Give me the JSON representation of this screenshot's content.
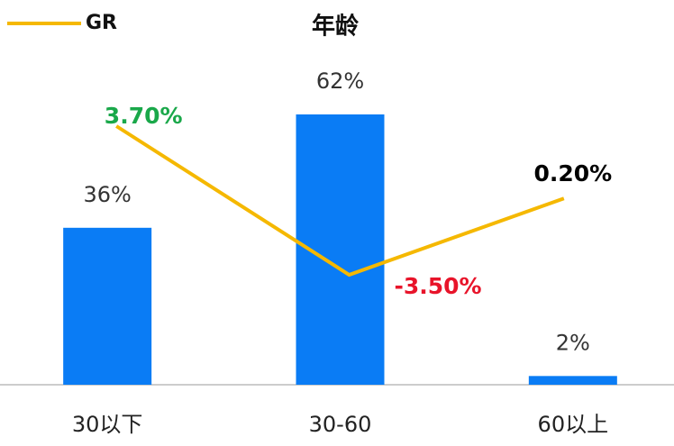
{
  "chart_data": {
    "type": "bar_line",
    "title": "年龄",
    "categories": [
      "30以下",
      "30-60",
      "60以上"
    ],
    "series": [
      {
        "type": "bar",
        "color": "#0a7cf5",
        "values": [
          36,
          62,
          2
        ],
        "value_labels": [
          "36%",
          "62%",
          "2%"
        ]
      },
      {
        "type": "line",
        "name": "GR",
        "color": "#f5b800",
        "values": [
          3.7,
          -3.5,
          0.2
        ],
        "value_labels": [
          "3.70%",
          "-3.50%",
          "0.20%"
        ],
        "label_colors": [
          "#1aa84a",
          "#e8142a",
          "#000000"
        ]
      }
    ],
    "legend": "top-left"
  }
}
